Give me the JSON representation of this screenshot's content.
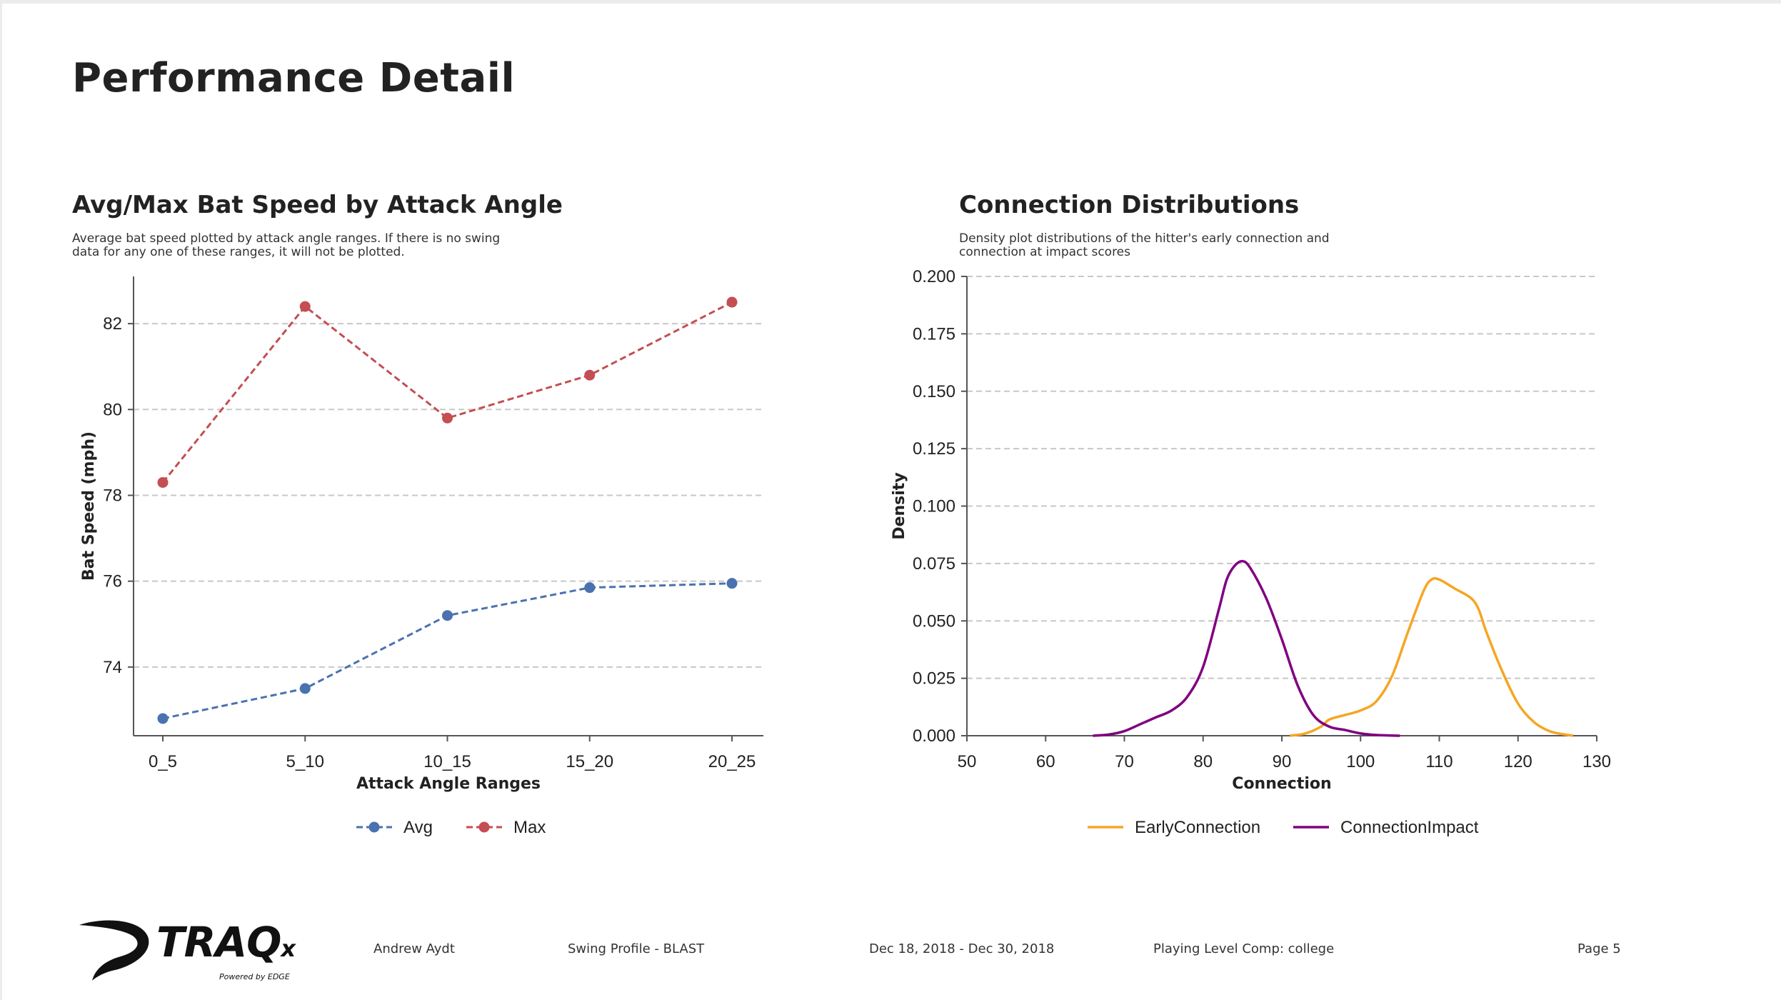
{
  "page": {
    "title": "Performance Detail"
  },
  "colors": {
    "avg": "#4a72b0",
    "max": "#c44e52",
    "early": "#f5a623",
    "impact": "#800080",
    "grid": "#c8c8c8",
    "axis": "#555555"
  },
  "left_panel": {
    "title": "Avg/Max Bat Speed by Attack Angle",
    "description_line1": "Average bat speed plotted by attack angle ranges. If there is no swing",
    "description_line2": "data for any one of these ranges, it will not be plotted."
  },
  "right_panel": {
    "title": "Connection Distributions",
    "description_line1": "Density plot distributions of the hitter's early connection and",
    "description_line2": "connection at impact scores"
  },
  "chart_data": [
    {
      "type": "line",
      "title": "Avg/Max Bat Speed by Attack Angle",
      "xlabel": "Attack Angle Ranges",
      "ylabel": "Bat Speed (mph)",
      "categories": [
        "0_5",
        "5_10",
        "10_15",
        "15_20",
        "20_25"
      ],
      "series": [
        {
          "name": "Avg",
          "values": [
            72.8,
            73.5,
            75.2,
            75.85,
            75.95
          ],
          "style": "dashed-with-markers"
        },
        {
          "name": "Max",
          "values": [
            78.3,
            82.4,
            79.8,
            80.8,
            82.5
          ],
          "style": "dashed-with-markers"
        }
      ],
      "ylim": [
        72.4,
        83.1
      ],
      "yticks": [
        "74",
        "76",
        "78",
        "80",
        "82"
      ],
      "grid": "horizontal-dashed",
      "legend": "bottom-center"
    },
    {
      "type": "line",
      "subtype": "density",
      "title": "Connection Distributions",
      "xlabel": "Connection",
      "ylabel": "Density",
      "xlim": [
        50,
        130
      ],
      "ylim": [
        0,
        0.2
      ],
      "xticks": [
        "50",
        "60",
        "70",
        "80",
        "90",
        "100",
        "110",
        "120",
        "130"
      ],
      "yticks": [
        "0.000",
        "0.025",
        "0.050",
        "0.075",
        "0.100",
        "0.125",
        "0.150",
        "0.175",
        "0.200"
      ],
      "series": [
        {
          "name": "EarlyConnection",
          "x": [
            91,
            93,
            95,
            96,
            98,
            100,
            102,
            104,
            106,
            108,
            109,
            110,
            112,
            114,
            115,
            116,
            118,
            120,
            122,
            124,
            126,
            127
          ],
          "values": [
            0.0,
            0.001,
            0.004,
            0.007,
            0.009,
            0.011,
            0.015,
            0.026,
            0.045,
            0.063,
            0.068,
            0.068,
            0.064,
            0.06,
            0.055,
            0.045,
            0.028,
            0.014,
            0.006,
            0.002,
            0.0005,
            0.0
          ]
        },
        {
          "name": "ConnectionImpact",
          "x": [
            66,
            68,
            70,
            72,
            74,
            76,
            78,
            80,
            82,
            83,
            84,
            85,
            86,
            88,
            90,
            92,
            94,
            96,
            98,
            100,
            102,
            105
          ],
          "values": [
            0.0,
            0.0005,
            0.002,
            0.005,
            0.008,
            0.011,
            0.017,
            0.03,
            0.055,
            0.068,
            0.074,
            0.076,
            0.073,
            0.06,
            0.042,
            0.022,
            0.009,
            0.004,
            0.0025,
            0.001,
            0.0003,
            0.0
          ]
        }
      ],
      "grid": "horizontal-dashed",
      "legend": "bottom-center"
    }
  ],
  "footer": {
    "logo_text": "TRAQ",
    "logo_subscript": "x",
    "logo_sub": "Powered by EDGE",
    "player": "Andrew Aydt",
    "profile": "Swing Profile - BLAST",
    "dates": "Dec 18, 2018 - Dec 30, 2018",
    "comp": "Playing Level Comp: college",
    "page": "Page 5"
  }
}
